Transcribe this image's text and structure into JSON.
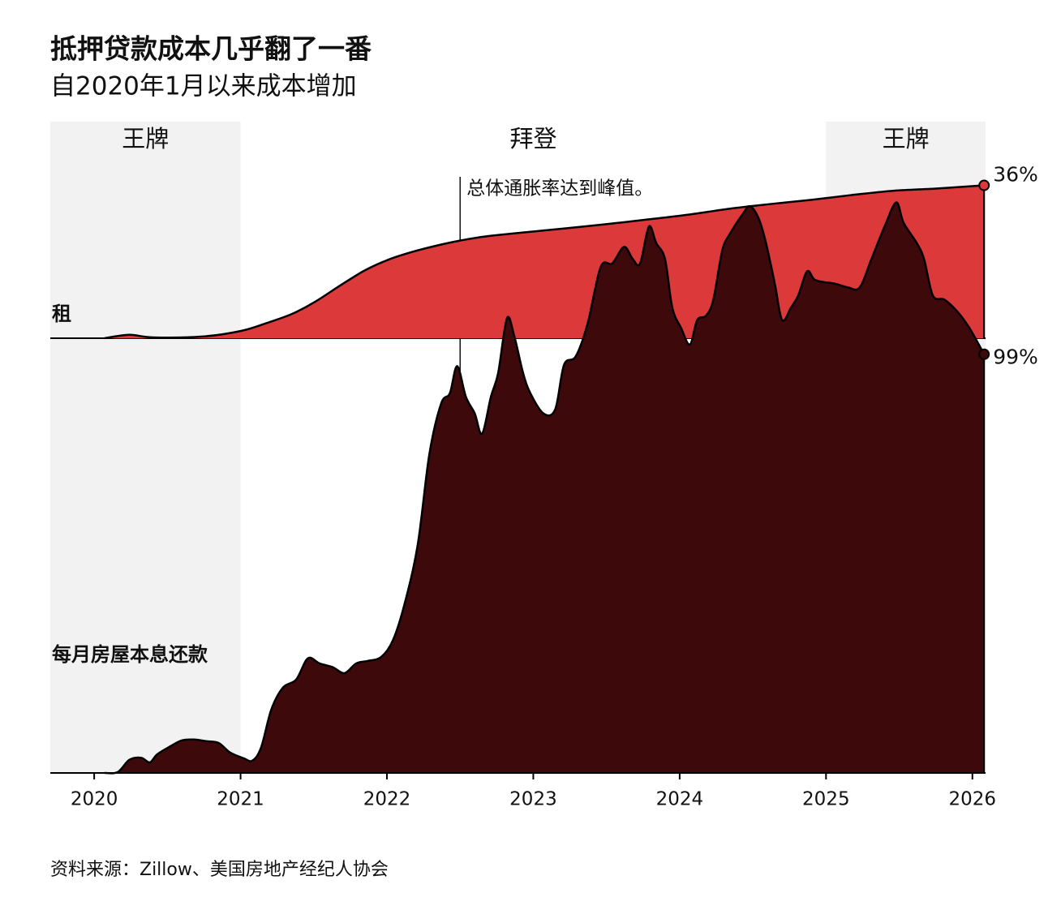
{
  "chart_data": {
    "type": "area",
    "title": "抵押贷款成本几乎翻了一番",
    "subtitle": "自2020年1月以来成本增加",
    "source": "资料来源：Zillow、美国房地产经纪人协会",
    "xlim": [
      2019.7,
      2026.09
    ],
    "xticks": [
      2020,
      2021,
      2022,
      2023,
      2024,
      2025,
      2026
    ],
    "periods": [
      {
        "label": "王牌",
        "start": 2019.7,
        "end": 2021.0,
        "shaded": true
      },
      {
        "label": "拜登",
        "start": 2021.0,
        "end": 2025.0,
        "shaded": false
      },
      {
        "label": "王牌",
        "start": 2025.0,
        "end": 2026.09,
        "shaded": true
      }
    ],
    "annotations": [
      {
        "text": "总体通胀率达到峰值。",
        "x": 2022.5
      }
    ],
    "series": [
      {
        "name": "租",
        "color": "#dc3a3a",
        "ylim": [
          0,
          51
        ],
        "x": [
          2020.07,
          2020.24,
          2020.4,
          2020.74,
          2021.0,
          2021.18,
          2021.35,
          2021.51,
          2021.68,
          2021.85,
          2022.01,
          2022.18,
          2022.35,
          2022.5,
          2022.68,
          2022.96,
          2023.23,
          2023.51,
          2023.79,
          2024.06,
          2024.34,
          2024.62,
          2024.9,
          2025.17,
          2025.45,
          2025.73,
          2026.08
        ],
        "values": [
          0,
          0.8,
          0.2,
          0.4,
          1.7,
          3.6,
          5.7,
          8.6,
          12.4,
          16,
          18.5,
          20.4,
          21.9,
          23,
          24,
          25,
          25.9,
          26.9,
          28,
          29.1,
          30.5,
          31.6,
          32.6,
          33.7,
          34.7,
          35.2,
          36
        ],
        "value_labels": [
          null,
          null,
          null,
          null,
          null,
          null,
          null,
          null,
          null,
          null,
          null,
          null,
          null,
          null,
          null,
          null,
          null,
          null,
          null,
          null,
          null,
          null,
          null,
          null,
          null,
          null,
          "36%"
        ]
      },
      {
        "name": "每月房屋本息还款",
        "color": "#3d090b",
        "ylim": [
          0,
          154
        ],
        "x": [
          2020.07,
          2020.16,
          2020.24,
          2020.32,
          2020.38,
          2020.43,
          2020.52,
          2020.6,
          2020.68,
          2020.77,
          2020.85,
          2020.93,
          2021.02,
          2021.08,
          2021.14,
          2021.21,
          2021.29,
          2021.38,
          2021.46,
          2021.54,
          2021.63,
          2021.71,
          2021.79,
          2021.87,
          2021.96,
          2022.04,
          2022.12,
          2022.21,
          2022.29,
          2022.37,
          2022.43,
          2022.48,
          2022.54,
          2022.6,
          2022.65,
          2022.71,
          2022.76,
          2022.82,
          2022.87,
          2022.93,
          2022.98,
          2023.07,
          2023.15,
          2023.21,
          2023.29,
          2023.37,
          2023.46,
          2023.54,
          2023.62,
          2023.68,
          2023.73,
          2023.79,
          2023.84,
          2023.9,
          2023.95,
          2024.01,
          2024.07,
          2024.12,
          2024.18,
          2024.23,
          2024.29,
          2024.34,
          2024.43,
          2024.48,
          2024.54,
          2024.59,
          2024.65,
          2024.7,
          2024.76,
          2024.81,
          2024.87,
          2024.92,
          2024.98,
          2025.06,
          2025.15,
          2025.23,
          2025.31,
          2025.4,
          2025.48,
          2025.53,
          2025.62,
          2025.67,
          2025.73,
          2025.81,
          2025.9,
          2025.98,
          2026.08
        ],
        "values": [
          0,
          0.2,
          3.1,
          3.6,
          2.5,
          4.4,
          6.3,
          7.7,
          7.9,
          7.5,
          7.1,
          4.8,
          3.5,
          2.9,
          6.0,
          15.0,
          20.2,
          22.1,
          27.1,
          25.9,
          25.0,
          23.6,
          25.9,
          26.5,
          27.4,
          31.3,
          39.9,
          53.9,
          75.4,
          87.3,
          89.8,
          96.2,
          88.9,
          85.0,
          80.2,
          88.9,
          94.6,
          107.5,
          103.3,
          94.6,
          89.8,
          85.0,
          86.0,
          96.5,
          98.5,
          106.1,
          119.6,
          120.5,
          124.4,
          121.5,
          120.5,
          129.2,
          125.3,
          121.5,
          110.0,
          105.2,
          101.3,
          107.1,
          108.1,
          111.9,
          123.4,
          127.3,
          132.1,
          134.0,
          131.1,
          125.3,
          115.7,
          107.1,
          110.0,
          112.9,
          118.6,
          116.7,
          116.1,
          115.7,
          114.8,
          114.8,
          121.5,
          129.2,
          134.9,
          130.1,
          125.3,
          121.5,
          112.9,
          111.9,
          109.0,
          105.2,
          99.0
        ],
        "value_labels": [
          null,
          null,
          null,
          null,
          null,
          null,
          null,
          null,
          null,
          null,
          null,
          null,
          null,
          null,
          null,
          null,
          null,
          null,
          null,
          null,
          null,
          null,
          null,
          null,
          null,
          null,
          null,
          null,
          null,
          null,
          null,
          null,
          null,
          null,
          null,
          null,
          null,
          null,
          null,
          null,
          null,
          null,
          null,
          null,
          null,
          null,
          null,
          null,
          null,
          null,
          null,
          null,
          null,
          null,
          null,
          null,
          null,
          null,
          null,
          null,
          null,
          null,
          null,
          null,
          null,
          null,
          null,
          null,
          null,
          null,
          null,
          null,
          null,
          null,
          null,
          null,
          null,
          null,
          null,
          null,
          null,
          null,
          null,
          null,
          null,
          null,
          "99%"
        ]
      }
    ]
  }
}
